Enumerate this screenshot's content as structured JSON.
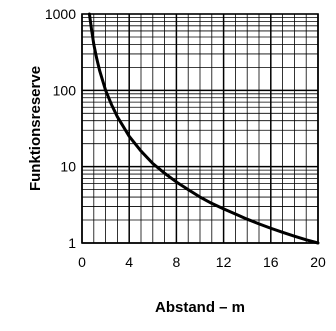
{
  "chart_data": {
    "type": "line",
    "title": "",
    "xlabel": "Abstand – m",
    "ylabel": "Funktionsreserve",
    "xlim": [
      0,
      20
    ],
    "ylim": [
      1,
      1000
    ],
    "yscale": "log",
    "grid": true,
    "x_ticks": [
      0,
      4,
      8,
      12,
      16,
      20
    ],
    "x_tick_labels": [
      "0",
      "4",
      "8",
      "12",
      "16",
      "20"
    ],
    "y_ticks": [
      1,
      10,
      100,
      1000
    ],
    "y_tick_labels": [
      "1",
      "10",
      "100",
      "1000"
    ],
    "series": [
      {
        "x": [
          0.63,
          0.8,
          1,
          1.25,
          1.5,
          2,
          2.5,
          3,
          4,
          5,
          6,
          7,
          8,
          9,
          10,
          11,
          12,
          13,
          14,
          15,
          16,
          17,
          18,
          19,
          20
        ],
        "y": [
          1000,
          640,
          400,
          260,
          180,
          100,
          65,
          45,
          25,
          16,
          11,
          8.2,
          6.3,
          5,
          4,
          3.3,
          2.8,
          2.4,
          2.05,
          1.78,
          1.56,
          1.38,
          1.23,
          1.1,
          1
        ],
        "color": "#000000"
      }
    ]
  }
}
